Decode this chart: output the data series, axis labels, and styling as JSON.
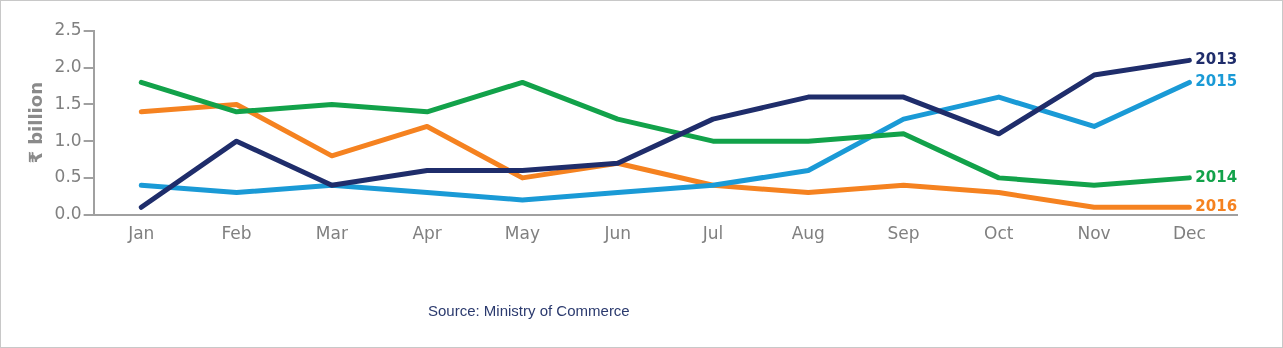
{
  "chart_data": {
    "type": "line",
    "ylabel": "₹ billion",
    "categories": [
      "Jan",
      "Feb",
      "Mar",
      "Apr",
      "May",
      "Jun",
      "Jul",
      "Aug",
      "Sep",
      "Oct",
      "Nov",
      "Dec"
    ],
    "series": [
      {
        "name": "2013",
        "color": "#1f2d6b",
        "values": [
          0.1,
          1.0,
          0.4,
          0.6,
          0.6,
          0.7,
          1.3,
          1.6,
          1.6,
          1.1,
          1.9,
          2.1
        ]
      },
      {
        "name": "2014",
        "color": "#12a24a",
        "values": [
          1.8,
          1.4,
          1.5,
          1.4,
          1.8,
          1.3,
          1.0,
          1.0,
          1.1,
          0.5,
          0.4,
          0.5
        ]
      },
      {
        "name": "2015",
        "color": "#1a9ad6",
        "values": [
          0.4,
          0.3,
          0.4,
          0.3,
          0.2,
          0.3,
          0.4,
          0.6,
          1.3,
          1.6,
          1.2,
          1.8
        ]
      },
      {
        "name": "2016",
        "color": "#f58220",
        "values": [
          1.4,
          1.5,
          0.8,
          1.2,
          0.5,
          0.7,
          0.4,
          0.3,
          0.4,
          0.3,
          0.1,
          0.1
        ]
      }
    ],
    "ylim": [
      0,
      2.5
    ],
    "yticks": [
      {
        "value": 0,
        "label": "0.0"
      },
      {
        "value": 0.5,
        "label": "0.5"
      },
      {
        "value": 1,
        "label": "1.0"
      },
      {
        "value": 1.5,
        "label": "1.5"
      },
      {
        "value": 2,
        "label": "2.0"
      },
      {
        "value": 2.5,
        "label": "2.5"
      }
    ],
    "grid": false,
    "legend": false,
    "marker": "none",
    "line_style": "solid",
    "annotations": [
      "Source: Ministry of Commerce"
    ]
  }
}
